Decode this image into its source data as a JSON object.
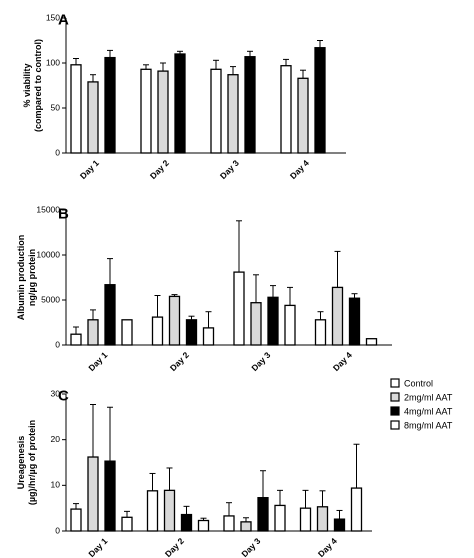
{
  "colors": {
    "control": "#ffffff",
    "aat2": "#d9d9d9",
    "aat4": "#000000",
    "aat8": "#ffffff",
    "stroke": "#000000"
  },
  "legend": {
    "position": "right",
    "entries": [
      {
        "label": "Control",
        "color": "#ffffff"
      },
      {
        "label": "2mg/ml AAT",
        "color": "#d9d9d9"
      },
      {
        "label": "4mg/ml AAT",
        "color": "#000000"
      },
      {
        "label": "8mg/ml AAT",
        "color": "#ffffff"
      }
    ]
  },
  "chart_data": [
    {
      "panel": "A",
      "type": "bar",
      "ylabel_lines": [
        "% viability",
        "(compared to control)"
      ],
      "ylim": [
        0,
        150
      ],
      "yticks": [
        0,
        50,
        100,
        150
      ],
      "categories": [
        "Day 1",
        "Day 2",
        "Day 3",
        "Day 4"
      ],
      "series": [
        {
          "values": [
            98,
            93,
            93,
            97
          ],
          "errors": [
            7,
            5,
            10,
            7
          ]
        },
        {
          "values": [
            79,
            91,
            87,
            83
          ],
          "errors": [
            8,
            9,
            9,
            9
          ]
        },
        {
          "values": [
            106,
            110,
            107,
            117
          ],
          "errors": [
            8,
            3,
            6,
            8
          ]
        }
      ]
    },
    {
      "panel": "B",
      "type": "bar",
      "ylabel_lines": [
        "Albumin production",
        "ng/µg protein"
      ],
      "ylim": [
        0,
        15000
      ],
      "yticks": [
        0,
        5000,
        10000,
        15000
      ],
      "categories": [
        "Day 1",
        "Day 2",
        "Day 3",
        "Day 4"
      ],
      "series": [
        {
          "values": [
            1200,
            3100,
            8100,
            2800
          ],
          "errors": [
            800,
            2400,
            5700,
            900
          ]
        },
        {
          "values": [
            2800,
            5400,
            4700,
            6400
          ],
          "errors": [
            1100,
            200,
            3100,
            4000
          ]
        },
        {
          "values": [
            6700,
            2800,
            5300,
            5200
          ],
          "errors": [
            2900,
            400,
            1300,
            500
          ]
        },
        {
          "values": [
            2800,
            1900,
            4400,
            700
          ],
          "errors": [
            0,
            1800,
            2000,
            0
          ]
        }
      ]
    },
    {
      "panel": "C",
      "type": "bar",
      "ylabel_lines": [
        "Ureagenesis",
        "(µg)/hr/µg of protein"
      ],
      "ylim": [
        0,
        30
      ],
      "yticks": [
        0,
        10,
        20,
        30
      ],
      "categories": [
        "Day 1",
        "Day 2",
        "Day 3",
        "Day 4"
      ],
      "series": [
        {
          "values": [
            4.8,
            8.8,
            3.3,
            5.0
          ],
          "errors": [
            1.2,
            3.8,
            2.9,
            3.9
          ]
        },
        {
          "values": [
            16.2,
            8.9,
            2.0,
            5.3
          ],
          "errors": [
            11.5,
            4.9,
            0.9,
            3.5
          ]
        },
        {
          "values": [
            15.3,
            3.6,
            7.3,
            2.6
          ],
          "errors": [
            11.8,
            1.8,
            5.9,
            1.9
          ]
        },
        {
          "values": [
            3.0,
            2.3,
            5.6,
            9.4
          ],
          "errors": [
            1.3,
            0.5,
            3.3,
            9.6
          ]
        }
      ]
    }
  ]
}
